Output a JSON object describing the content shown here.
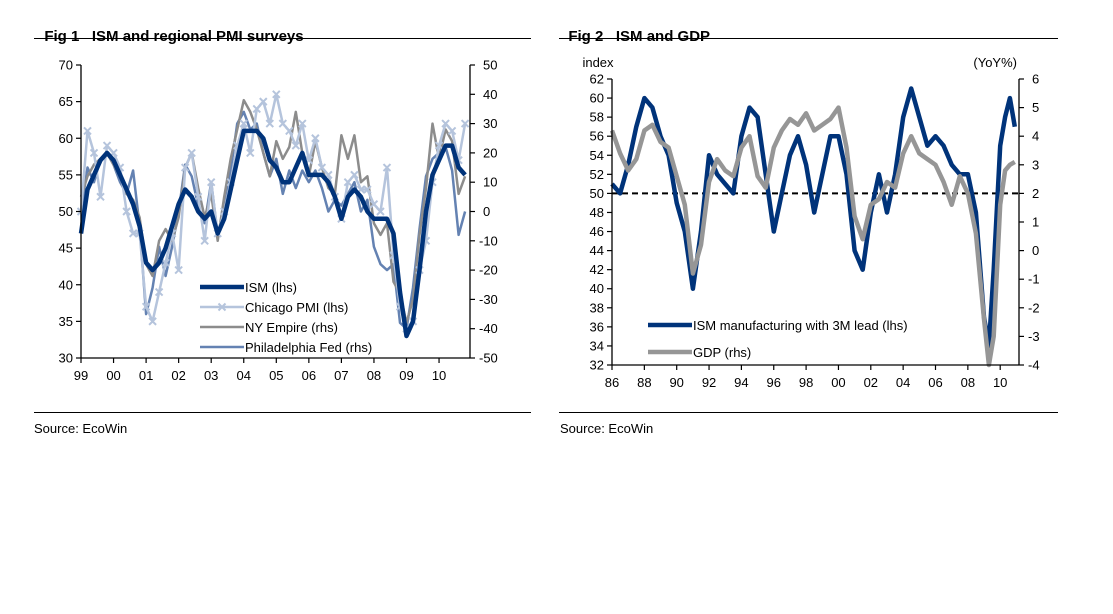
{
  "figures": [
    {
      "label": "Fig 1",
      "title": "ISM and regional PMI surveys",
      "source": "Source: EcoWin"
    },
    {
      "label": "Fig 2",
      "title": "ISM and GDP",
      "source": "Source: EcoWin"
    }
  ],
  "chart_data": [
    {
      "type": "line",
      "title": "ISM and regional PMI surveys",
      "xlabel": "",
      "ylabel": "",
      "x_tick_labels": [
        "99",
        "00",
        "01",
        "02",
        "03",
        "04",
        "05",
        "06",
        "07",
        "08",
        "09",
        "10"
      ],
      "x_range": [
        1999.0,
        2010.9
      ],
      "ylim_left": [
        30,
        70
      ],
      "y_ticks_left": [
        30,
        35,
        40,
        45,
        50,
        55,
        60,
        65,
        70
      ],
      "ylim_right": [
        -50,
        50
      ],
      "y_ticks_right": [
        -50,
        -40,
        -30,
        -20,
        -10,
        0,
        10,
        20,
        30,
        40,
        50
      ],
      "grid": false,
      "legend_position": "bottom-center",
      "series": [
        {
          "name": "ISM (lhs)",
          "axis": "left",
          "color": "#00337a",
          "width": 4.5,
          "marker": "none",
          "x": [
            1999.0,
            1999.2,
            1999.4,
            1999.6,
            1999.8,
            2000.0,
            2000.2,
            2000.4,
            2000.6,
            2000.8,
            2001.0,
            2001.2,
            2001.4,
            2001.6,
            2001.8,
            2002.0,
            2002.2,
            2002.4,
            2002.6,
            2002.8,
            2003.0,
            2003.2,
            2003.4,
            2003.6,
            2003.8,
            2004.0,
            2004.2,
            2004.4,
            2004.6,
            2004.8,
            2005.0,
            2005.2,
            2005.4,
            2005.6,
            2005.8,
            2006.0,
            2006.2,
            2006.4,
            2006.6,
            2006.8,
            2007.0,
            2007.2,
            2007.4,
            2007.6,
            2007.8,
            2008.0,
            2008.2,
            2008.4,
            2008.6,
            2008.8,
            2009.0,
            2009.2,
            2009.4,
            2009.6,
            2009.8,
            2010.0,
            2010.2,
            2010.4,
            2010.6,
            2010.8
          ],
          "y": [
            47,
            53,
            55,
            57,
            58,
            57,
            55,
            53,
            51,
            48,
            43,
            42,
            43,
            45,
            48,
            51,
            53,
            52,
            50,
            49,
            50,
            47,
            49,
            53,
            57,
            61,
            61,
            61,
            60,
            57,
            56,
            54,
            54,
            56,
            58,
            55,
            55,
            55,
            54,
            52,
            49,
            52,
            53,
            52,
            50,
            49,
            49,
            49,
            47,
            39,
            33,
            35,
            42,
            50,
            55,
            57,
            59,
            59,
            56,
            55
          ]
        },
        {
          "name": "Chicago PMI (lhs)",
          "axis": "left",
          "color": "#b5c4dc",
          "width": 2.5,
          "marker": "x",
          "x": [
            1999.0,
            1999.2,
            1999.4,
            1999.6,
            1999.8,
            2000.0,
            2000.2,
            2000.4,
            2000.6,
            2000.8,
            2001.0,
            2001.2,
            2001.4,
            2001.6,
            2001.8,
            2002.0,
            2002.2,
            2002.4,
            2002.6,
            2002.8,
            2003.0,
            2003.2,
            2003.4,
            2003.6,
            2003.8,
            2004.0,
            2004.2,
            2004.4,
            2004.6,
            2004.8,
            2005.0,
            2005.2,
            2005.4,
            2005.6,
            2005.8,
            2006.0,
            2006.2,
            2006.4,
            2006.6,
            2006.8,
            2007.0,
            2007.2,
            2007.4,
            2007.6,
            2007.8,
            2008.0,
            2008.2,
            2008.4,
            2008.6,
            2008.8,
            2009.0,
            2009.2,
            2009.4,
            2009.6,
            2009.8,
            2010.0,
            2010.2,
            2010.4,
            2010.6,
            2010.8
          ],
          "y": [
            50,
            61,
            58,
            52,
            59,
            58,
            56,
            50,
            47,
            47,
            37,
            35,
            39,
            43,
            47,
            42,
            56,
            58,
            52,
            46,
            54,
            47,
            50,
            54,
            59,
            62,
            58,
            64,
            65,
            62,
            66,
            62,
            61,
            59,
            62,
            57,
            60,
            56,
            55,
            52,
            49,
            54,
            55,
            53,
            53,
            51,
            50,
            56,
            44,
            37,
            34,
            35,
            42,
            46,
            54,
            59,
            62,
            61,
            57,
            62
          ]
        },
        {
          "name": "NY Empire (rhs)",
          "axis": "right",
          "color": "#8c8c8c",
          "width": 2.5,
          "marker": "none",
          "x": [
            1999.0,
            1999.2,
            1999.4,
            1999.6,
            1999.8,
            2000.0,
            2000.2,
            2000.4,
            2000.6,
            2000.8,
            2001.0,
            2001.2,
            2001.4,
            2001.6,
            2001.8,
            2002.0,
            2002.2,
            2002.4,
            2002.6,
            2002.8,
            2003.0,
            2003.2,
            2003.4,
            2003.6,
            2003.8,
            2004.0,
            2004.2,
            2004.4,
            2004.6,
            2004.8,
            2005.0,
            2005.2,
            2005.4,
            2005.6,
            2005.8,
            2006.0,
            2006.2,
            2006.4,
            2006.6,
            2006.8,
            2007.0,
            2007.2,
            2007.4,
            2007.6,
            2007.8,
            2008.0,
            2008.2,
            2008.4,
            2008.6,
            2008.8,
            2009.0,
            2009.2,
            2009.4,
            2009.6,
            2009.8,
            2010.0,
            2010.2,
            2010.4,
            2010.6,
            2010.8
          ],
          "y": [
            5,
            12,
            16,
            18,
            20,
            16,
            12,
            6,
            4,
            -2,
            -18,
            -22,
            -10,
            -6,
            -10,
            -2,
            15,
            20,
            8,
            -2,
            6,
            -10,
            5,
            18,
            28,
            38,
            34,
            28,
            20,
            12,
            24,
            18,
            22,
            34,
            20,
            12,
            24,
            15,
            8,
            6,
            26,
            18,
            26,
            10,
            12,
            -4,
            -8,
            -4,
            -24,
            -28,
            -38,
            -30,
            -8,
            8,
            30,
            18,
            28,
            24,
            6,
            12
          ]
        },
        {
          "name": "Philadelphia Fed (rhs)",
          "axis": "right",
          "color": "#6482b2",
          "width": 2.5,
          "marker": "none",
          "x": [
            1999.0,
            1999.2,
            1999.4,
            1999.6,
            1999.8,
            2000.0,
            2000.2,
            2000.4,
            2000.6,
            2000.8,
            2001.0,
            2001.2,
            2001.4,
            2001.6,
            2001.8,
            2002.0,
            2002.2,
            2002.4,
            2002.6,
            2002.8,
            2003.0,
            2003.2,
            2003.4,
            2003.6,
            2003.8,
            2004.0,
            2004.2,
            2004.4,
            2004.6,
            2004.8,
            2005.0,
            2005.2,
            2005.4,
            2005.6,
            2005.8,
            2006.0,
            2006.2,
            2006.4,
            2006.6,
            2006.8,
            2007.0,
            2007.2,
            2007.4,
            2007.6,
            2007.8,
            2008.0,
            2008.2,
            2008.4,
            2008.6,
            2008.8,
            2009.0,
            2009.2,
            2009.4,
            2009.6,
            2009.8,
            2010.0,
            2010.2,
            2010.4,
            2010.6,
            2010.8
          ],
          "y": [
            0,
            15,
            10,
            18,
            20,
            16,
            10,
            6,
            14,
            -5,
            -35,
            -26,
            -12,
            -22,
            -12,
            0,
            16,
            12,
            2,
            -4,
            10,
            -8,
            0,
            14,
            30,
            34,
            28,
            30,
            20,
            12,
            18,
            6,
            14,
            8,
            14,
            10,
            14,
            8,
            0,
            4,
            2,
            6,
            10,
            0,
            4,
            -12,
            -18,
            -20,
            -18,
            -38,
            -40,
            -26,
            -6,
            12,
            18,
            20,
            22,
            14,
            -8,
            0
          ]
        }
      ]
    },
    {
      "type": "line",
      "title": "ISM and GDP",
      "xlabel": "",
      "ylabel_left": "index",
      "ylabel_right": "(YoY%)",
      "x_tick_labels": [
        "86",
        "88",
        "90",
        "92",
        "94",
        "96",
        "98",
        "00",
        "02",
        "04",
        "06",
        "08",
        "10"
      ],
      "x_range": [
        1986.0,
        2011.8
      ],
      "ylim_left": [
        32,
        62
      ],
      "y_ticks_left": [
        32,
        34,
        36,
        38,
        40,
        42,
        44,
        46,
        48,
        50,
        52,
        54,
        56,
        58,
        60,
        62
      ],
      "ylim_right": [
        -4,
        6
      ],
      "y_ticks_right": [
        -4,
        -3,
        -2,
        -1,
        0,
        1,
        2,
        3,
        4,
        5,
        6
      ],
      "reference_line": {
        "axis": "left",
        "value": 50,
        "style": "dashed"
      },
      "grid": false,
      "legend_position": "bottom-left",
      "series": [
        {
          "name": "ISM manufacturing with 3M lead (lhs)",
          "axis": "left",
          "color": "#00337a",
          "width": 4.5,
          "x": [
            1986.0,
            1986.5,
            1987.0,
            1987.5,
            1988.0,
            1988.5,
            1989.0,
            1989.5,
            1990.0,
            1990.5,
            1991.0,
            1991.5,
            1992.0,
            1992.5,
            1993.0,
            1993.5,
            1994.0,
            1994.5,
            1995.0,
            1995.5,
            1996.0,
            1996.5,
            1997.0,
            1997.5,
            1998.0,
            1998.5,
            1999.0,
            1999.5,
            2000.0,
            2000.5,
            2001.0,
            2001.5,
            2002.0,
            2002.5,
            2003.0,
            2003.5,
            2004.0,
            2004.5,
            2005.0,
            2005.5,
            2006.0,
            2006.5,
            2007.0,
            2007.5,
            2008.0,
            2008.5,
            2009.0,
            2009.3,
            2009.6,
            2010.0,
            2010.3,
            2010.6,
            2010.9
          ],
          "y": [
            51,
            50,
            53,
            57,
            60,
            59,
            56,
            54,
            49,
            46,
            40,
            46,
            54,
            52,
            51,
            50,
            56,
            59,
            58,
            52,
            46,
            50,
            54,
            56,
            53,
            48,
            52,
            56,
            56,
            52,
            44,
            42,
            48,
            52,
            48,
            52,
            58,
            61,
            58,
            55,
            56,
            55,
            53,
            52,
            52,
            48,
            37,
            34,
            42,
            55,
            58,
            60,
            57
          ]
        },
        {
          "name": "GDP (rhs)",
          "axis": "right",
          "color": "#969696",
          "width": 4.5,
          "x": [
            1986.0,
            1986.5,
            1987.0,
            1987.5,
            1988.0,
            1988.5,
            1989.0,
            1989.5,
            1990.0,
            1990.5,
            1991.0,
            1991.5,
            1992.0,
            1992.5,
            1993.0,
            1993.5,
            1994.0,
            1994.5,
            1995.0,
            1995.5,
            1996.0,
            1996.5,
            1997.0,
            1997.5,
            1998.0,
            1998.5,
            1999.0,
            1999.5,
            2000.0,
            2000.5,
            2001.0,
            2001.5,
            2002.0,
            2002.5,
            2003.0,
            2003.5,
            2004.0,
            2004.5,
            2005.0,
            2005.5,
            2006.0,
            2006.5,
            2007.0,
            2007.5,
            2008.0,
            2008.5,
            2009.0,
            2009.3,
            2009.6,
            2010.0,
            2010.3,
            2010.6,
            2010.9
          ],
          "y": [
            4.2,
            3.4,
            2.8,
            3.2,
            4.2,
            4.4,
            3.8,
            3.6,
            2.6,
            1.6,
            -0.8,
            0.2,
            2.4,
            3.2,
            2.8,
            2.6,
            3.6,
            4.0,
            2.6,
            2.2,
            3.6,
            4.2,
            4.6,
            4.4,
            4.8,
            4.2,
            4.4,
            4.6,
            5.0,
            3.6,
            1.2,
            0.4,
            1.6,
            1.8,
            2.4,
            2.2,
            3.4,
            4.0,
            3.4,
            3.2,
            3.0,
            2.4,
            1.6,
            2.6,
            2.0,
            0.6,
            -2.4,
            -4.0,
            -3.0,
            1.6,
            2.8,
            3.0,
            3.1
          ]
        }
      ]
    }
  ]
}
